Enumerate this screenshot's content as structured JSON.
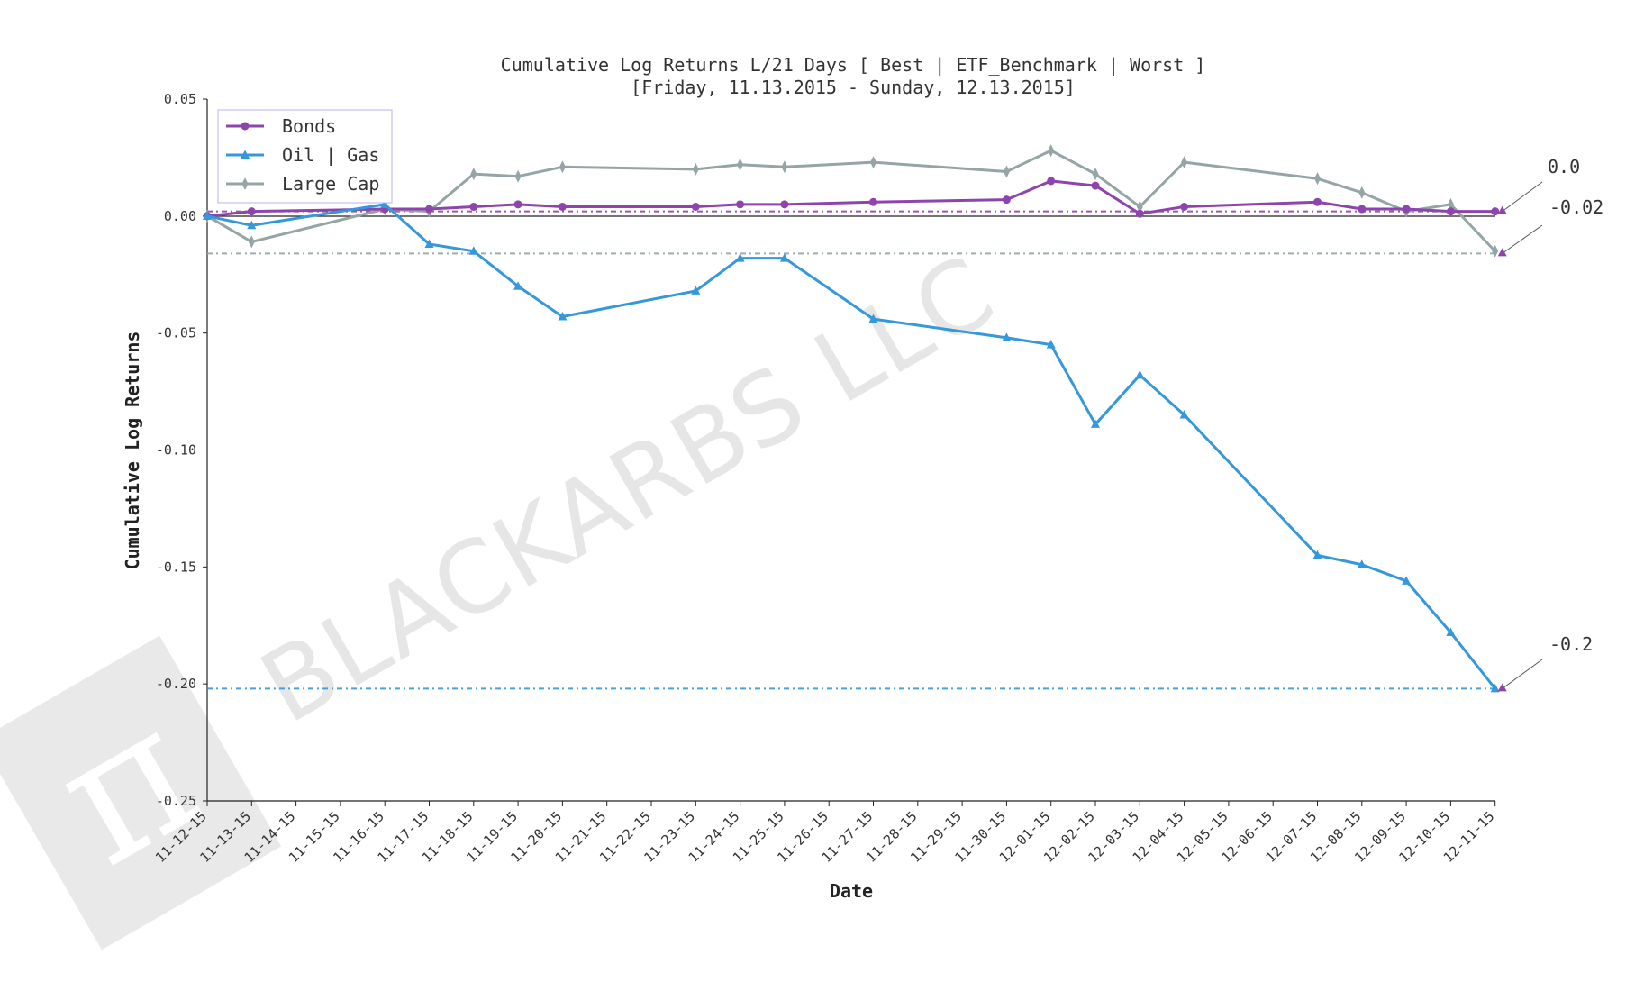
{
  "chart_data": {
    "type": "line",
    "title": "Cumulative Log Returns L/21 Days [ Best | ETF_Benchmark | Worst ]",
    "subtitle": "[Friday, 11.13.2015 - Sunday, 12.13.2015]",
    "xlabel": "Date",
    "ylabel": "Cumulative Log Returns",
    "ylim": [
      -0.25,
      0.05
    ],
    "yticks": [
      "0.05",
      "0.00",
      "-0.05",
      "-0.10",
      "-0.15",
      "-0.20",
      "-0.25"
    ],
    "ytick_values": [
      0.05,
      0.0,
      -0.05,
      -0.1,
      -0.15,
      -0.2,
      -0.25
    ],
    "categories": [
      "11-12-15",
      "11-13-15",
      "11-14-15",
      "11-15-15",
      "11-16-15",
      "11-17-15",
      "11-18-15",
      "11-19-15",
      "11-20-15",
      "11-21-15",
      "11-22-15",
      "11-23-15",
      "11-24-15",
      "11-25-15",
      "11-26-15",
      "11-27-15",
      "11-28-15",
      "11-29-15",
      "11-30-15",
      "12-01-15",
      "12-02-15",
      "12-03-15",
      "12-04-15",
      "12-05-15",
      "12-06-15",
      "12-07-15",
      "12-08-15",
      "12-09-15",
      "12-10-15",
      "12-11-15"
    ],
    "legend_position": "top-left",
    "series": [
      {
        "name": "Bonds",
        "color": "#8e44ad",
        "marker": "circle",
        "points": [
          [
            0,
            0.0
          ],
          [
            1,
            0.002
          ],
          [
            4,
            0.003
          ],
          [
            5,
            0.003
          ],
          [
            6,
            0.004
          ],
          [
            7,
            0.005
          ],
          [
            8,
            0.004
          ],
          [
            11,
            0.004
          ],
          [
            12,
            0.005
          ],
          [
            13,
            0.005
          ],
          [
            15,
            0.006
          ],
          [
            18,
            0.007
          ],
          [
            19,
            0.015
          ],
          [
            20,
            0.013
          ],
          [
            21,
            0.001
          ],
          [
            22,
            0.004
          ],
          [
            25,
            0.006
          ],
          [
            26,
            0.003
          ],
          [
            27,
            0.003
          ],
          [
            28,
            0.002
          ],
          [
            29,
            0.002
          ]
        ],
        "final_line": 0.002,
        "annotation": "0.0"
      },
      {
        "name": "Oil | Gas",
        "color": "#3498db",
        "marker": "triangle",
        "points": [
          [
            0,
            0.0
          ],
          [
            1,
            -0.004
          ],
          [
            4,
            0.005
          ],
          [
            5,
            -0.012
          ],
          [
            6,
            -0.015
          ],
          [
            7,
            -0.03
          ],
          [
            8,
            -0.043
          ],
          [
            11,
            -0.032
          ],
          [
            12,
            -0.018
          ],
          [
            13,
            -0.018
          ],
          [
            15,
            -0.044
          ],
          [
            18,
            -0.052
          ],
          [
            19,
            -0.055
          ],
          [
            20,
            -0.089
          ],
          [
            21,
            -0.068
          ],
          [
            22,
            -0.085
          ],
          [
            25,
            -0.145
          ],
          [
            26,
            -0.149
          ],
          [
            27,
            -0.156
          ],
          [
            28,
            -0.178
          ],
          [
            29,
            -0.202
          ]
        ],
        "final_line": -0.202,
        "annotation": "-0.2"
      },
      {
        "name": "Large Cap",
        "color": "#95a5a6",
        "marker": "diamond",
        "points": [
          [
            0,
            0.0
          ],
          [
            1,
            -0.011
          ],
          [
            4,
            0.003
          ],
          [
            5,
            0.002
          ],
          [
            6,
            0.018
          ],
          [
            7,
            0.017
          ],
          [
            8,
            0.021
          ],
          [
            11,
            0.02
          ],
          [
            12,
            0.022
          ],
          [
            13,
            0.021
          ],
          [
            15,
            0.023
          ],
          [
            18,
            0.019
          ],
          [
            19,
            0.028
          ],
          [
            20,
            0.018
          ],
          [
            21,
            0.004
          ],
          [
            22,
            0.023
          ],
          [
            25,
            0.016
          ],
          [
            26,
            0.01
          ],
          [
            27,
            0.002
          ],
          [
            28,
            0.005
          ],
          [
            29,
            -0.015
          ]
        ],
        "final_line": -0.016,
        "annotation": "-0.02"
      }
    ],
    "annotation_marker_color": "#8e44ad"
  },
  "watermark": {
    "text": "BLACKARBS LLC"
  }
}
